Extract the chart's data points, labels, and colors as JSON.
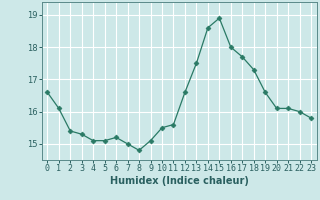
{
  "x": [
    0,
    1,
    2,
    3,
    4,
    5,
    6,
    7,
    8,
    9,
    10,
    11,
    12,
    13,
    14,
    15,
    16,
    17,
    18,
    19,
    20,
    21,
    22,
    23
  ],
  "y": [
    16.6,
    16.1,
    15.4,
    15.3,
    15.1,
    15.1,
    15.2,
    15.0,
    14.8,
    15.1,
    15.5,
    15.6,
    16.6,
    17.5,
    18.6,
    18.9,
    18.0,
    17.7,
    17.3,
    16.6,
    16.1,
    16.1,
    16.0,
    15.8
  ],
  "line_color": "#2a7a65",
  "marker": "D",
  "marker_size": 2.5,
  "bg_color": "#cde8e8",
  "grid_color": "#ffffff",
  "xlabel": "Humidex (Indice chaleur)",
  "ylim": [
    14.5,
    19.4
  ],
  "yticks": [
    15,
    16,
    17,
    18,
    19
  ],
  "xticks": [
    0,
    1,
    2,
    3,
    4,
    5,
    6,
    7,
    8,
    9,
    10,
    11,
    12,
    13,
    14,
    15,
    16,
    17,
    18,
    19,
    20,
    21,
    22,
    23
  ],
  "tick_color": "#2a6060",
  "label_fontsize": 7,
  "tick_fontsize": 6
}
